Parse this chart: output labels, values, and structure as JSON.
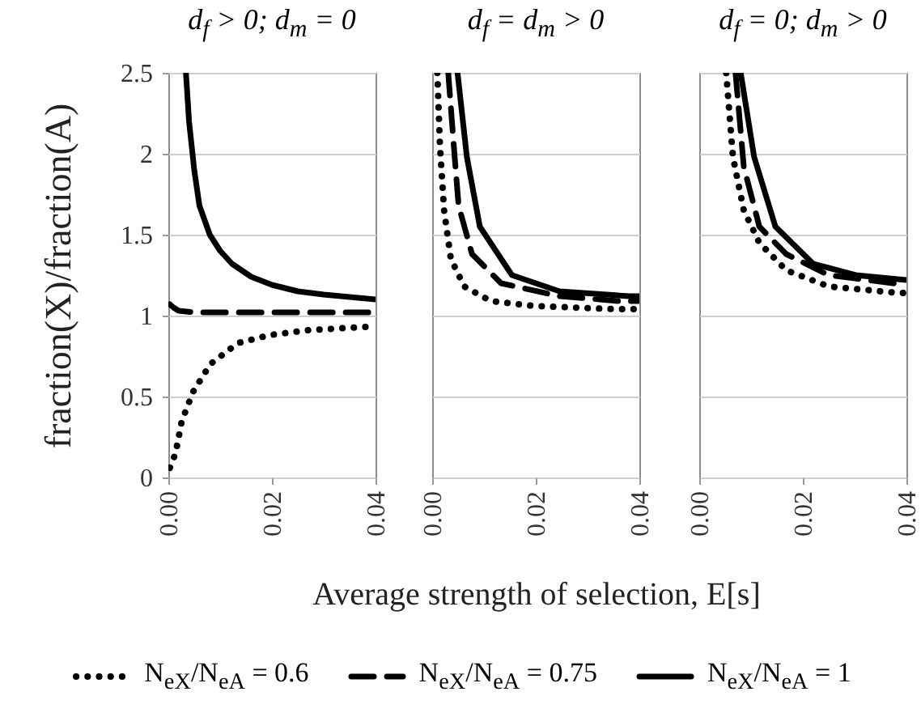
{
  "chart_data": [
    {
      "type": "line",
      "title": "d$_{f}$ > 0; d$_{m}$ = 0",
      "ylabel": "fraction(X)/fraction(A)",
      "xlim": [
        0,
        0.04
      ],
      "ylim": [
        0,
        2.5
      ],
      "xticks": [
        {
          "value": 0,
          "label": "0.00"
        },
        {
          "value": 0.02,
          "label": "0.02"
        },
        {
          "value": 0.04,
          "label": "0.04"
        }
      ],
      "yticks": [
        0,
        0.5,
        1,
        1.5,
        2,
        2.5
      ],
      "grid": "y",
      "legend": "bottom",
      "series": [
        {
          "name": "N$_{eX}$/N$_{eA}$ = 0.6",
          "color": "#000000",
          "line_style": "dotted",
          "x": [
            0.0003,
            0.0014,
            0.0026,
            0.0048,
            0.0081,
            0.0134,
            0.0196,
            0.027,
            0.038,
            0.04
          ],
          "values": [
            0.06,
            0.15,
            0.35,
            0.53,
            0.7,
            0.83,
            0.88,
            0.91,
            0.93,
            0.93
          ]
        },
        {
          "name": "N$_{eX}$/N$_{eA}$ = 0.75",
          "color": "#000000",
          "line_style": "dashed",
          "x": [
            0.0003,
            0.001,
            0.002,
            0.005,
            0.01,
            0.02,
            0.04
          ],
          "values": [
            1.07,
            1.05,
            1.03,
            1.02,
            1.02,
            1.02,
            1.02
          ]
        },
        {
          "name": "N$_{eX}$/N$_{eA}$ = 1",
          "color": "#000000",
          "line_style": "solid",
          "x": [
            0.0034,
            0.004,
            0.005,
            0.006,
            0.008,
            0.01,
            0.0123,
            0.016,
            0.02,
            0.025,
            0.03,
            0.04
          ],
          "values": [
            2.5,
            2.2,
            1.9,
            1.68,
            1.5,
            1.4,
            1.32,
            1.24,
            1.19,
            1.15,
            1.13,
            1.1
          ]
        }
      ]
    },
    {
      "type": "line",
      "title": "d$_{f}$ = d$_{m}$ > 0",
      "xlabel": "Average strength of selection, E[s]",
      "xlim": [
        0,
        0.04
      ],
      "ylim": [
        0,
        2.5
      ],
      "xticks": [
        {
          "value": 0,
          "label": "0.00"
        },
        {
          "value": 0.02,
          "label": "0.02"
        },
        {
          "value": 0.04,
          "label": "0.04"
        }
      ],
      "yticks": [
        0,
        0.5,
        1,
        1.5,
        2,
        2.5
      ],
      "grid": "y",
      "tick_labels": "x",
      "series": [
        {
          "color": "#000000",
          "line_style": "dotted",
          "x": [
            0.001,
            0.0015,
            0.0023,
            0.0036,
            0.0062,
            0.0113,
            0.0195,
            0.035,
            0.04
          ],
          "values": [
            2.5,
            2.05,
            1.65,
            1.35,
            1.18,
            1.09,
            1.06,
            1.04,
            1.04
          ]
        },
        {
          "color": "#000000",
          "line_style": "dashed",
          "x": [
            0.0031,
            0.0041,
            0.0051,
            0.0077,
            0.0133,
            0.0246,
            0.036,
            0.04
          ],
          "values": [
            2.5,
            2.08,
            1.68,
            1.38,
            1.2,
            1.12,
            1.09,
            1.09
          ]
        },
        {
          "color": "#000000",
          "line_style": "solid",
          "x": [
            0.0049,
            0.0067,
            0.0092,
            0.0154,
            0.0246,
            0.038,
            0.04
          ],
          "values": [
            2.5,
            1.98,
            1.55,
            1.25,
            1.15,
            1.12,
            1.12
          ]
        }
      ]
    },
    {
      "type": "line",
      "title": "d$_{f}$ = 0; d$_{m}$ > 0",
      "xlim": [
        0,
        0.04
      ],
      "ylim": [
        0,
        2.5
      ],
      "xticks": [
        {
          "value": 0,
          "label": "0.00"
        },
        {
          "value": 0.02,
          "label": "0.02"
        },
        {
          "value": 0.04,
          "label": "0.04"
        }
      ],
      "yticks": [
        0,
        0.5,
        1,
        1.5,
        2,
        2.5
      ],
      "grid": "y",
      "tick_labels": "x",
      "series": [
        {
          "color": "#000000",
          "line_style": "dotted",
          "x": [
            0.0052,
            0.0065,
            0.0086,
            0.0116,
            0.0168,
            0.025,
            0.0385,
            0.04
          ],
          "values": [
            2.5,
            1.98,
            1.65,
            1.45,
            1.28,
            1.18,
            1.14,
            1.14
          ]
        },
        {
          "color": "#000000",
          "line_style": "dashed",
          "x": [
            0.007,
            0.0086,
            0.0116,
            0.0168,
            0.025,
            0.0374,
            0.04
          ],
          "values": [
            2.5,
            1.92,
            1.55,
            1.38,
            1.25,
            1.2,
            1.19
          ]
        },
        {
          "color": "#000000",
          "line_style": "solid",
          "x": [
            0.008,
            0.0106,
            0.0147,
            0.022,
            0.0302,
            0.04
          ],
          "values": [
            2.5,
            1.98,
            1.55,
            1.32,
            1.25,
            1.22
          ]
        }
      ]
    }
  ]
}
